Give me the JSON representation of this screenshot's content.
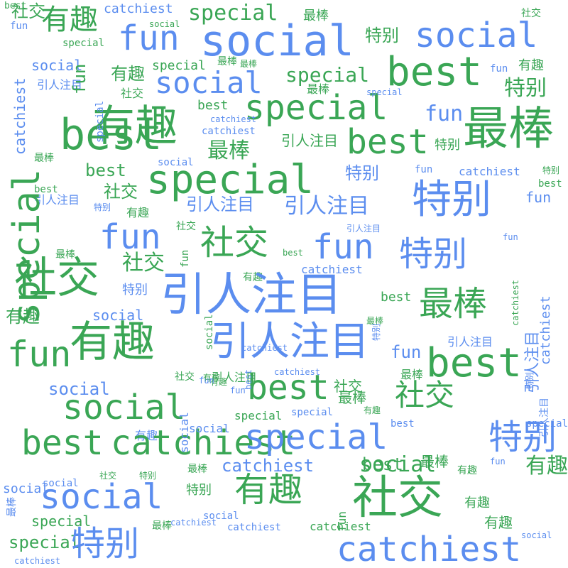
{
  "colors": {
    "blue": "#5b8def",
    "green": "#3aa655",
    "background": "#ffffff"
  },
  "words": [
    "best",
    "有趣",
    "catchiest",
    "social",
    "社交",
    "fun",
    "special",
    "最棒",
    "社交",
    "fun",
    "social",
    "social",
    "special",
    "特别",
    "social",
    "最棒",
    "special",
    "有趣",
    "引人注目",
    "best",
    "social",
    "special",
    "fun",
    "有趣",
    "最棒",
    "社交",
    "special",
    "special",
    "特别",
    "最棒",
    "有趣",
    "最棒",
    "best",
    "catchiest",
    "catchiest",
    "fun",
    "best",
    "最棒",
    "引人注目",
    "最棒",
    "best",
    "特别",
    "social",
    "special",
    "best",
    "引人注目",
    "特别",
    "fun",
    "catchiest",
    "特别",
    "社交",
    "best",
    "有趣",
    "引人注目",
    "引人注目",
    "特别",
    "fun",
    "best",
    "fun",
    "引人注目",
    "社交",
    "fun",
    "特别",
    "社交",
    "最棒",
    "特别",
    "社交",
    "fun",
    "best",
    "有趣",
    "catchiest",
    "社交",
    "特别",
    "引人注目",
    "最棒",
    "best",
    "social",
    "有趣",
    "有趣",
    "有趣",
    "最棒",
    "最棒",
    "fun",
    "social",
    "catchiest",
    "引人注目",
    "社交",
    "best",
    "有趣",
    "引人注目",
    "fun",
    "best",
    "有趣",
    "引人注目",
    "special",
    "social",
    "有趣",
    "社交",
    "fun",
    "fun",
    "special",
    "社交",
    "最棒",
    "best",
    "catchiest",
    "special",
    "special",
    "catchiest",
    "best",
    "social",
    "social",
    "social",
    "catchiest",
    "fun",
    "有趣",
    "特别",
    "最棒",
    "社交",
    "特别",
    "best",
    "最棒",
    "有趣",
    "有趣",
    "社交",
    "social",
    "特别",
    "social",
    "有趣",
    "catchiest",
    "social",
    "special",
    "catchiest",
    "catchiest",
    "catchiest",
    "special",
    "特别",
    "catchiest",
    "有趣",
    "最棒",
    "social",
    "special",
    "catchiest",
    "fun",
    "special",
    "引人注目",
    "catchiest",
    "特别",
    "引人注目",
    "catchiest",
    "social",
    "特别",
    "最棒",
    "best",
    "fun",
    "social",
    "fun",
    "best",
    "catchiest",
    "社交",
    "引人注目",
    "有趣"
  ]
}
